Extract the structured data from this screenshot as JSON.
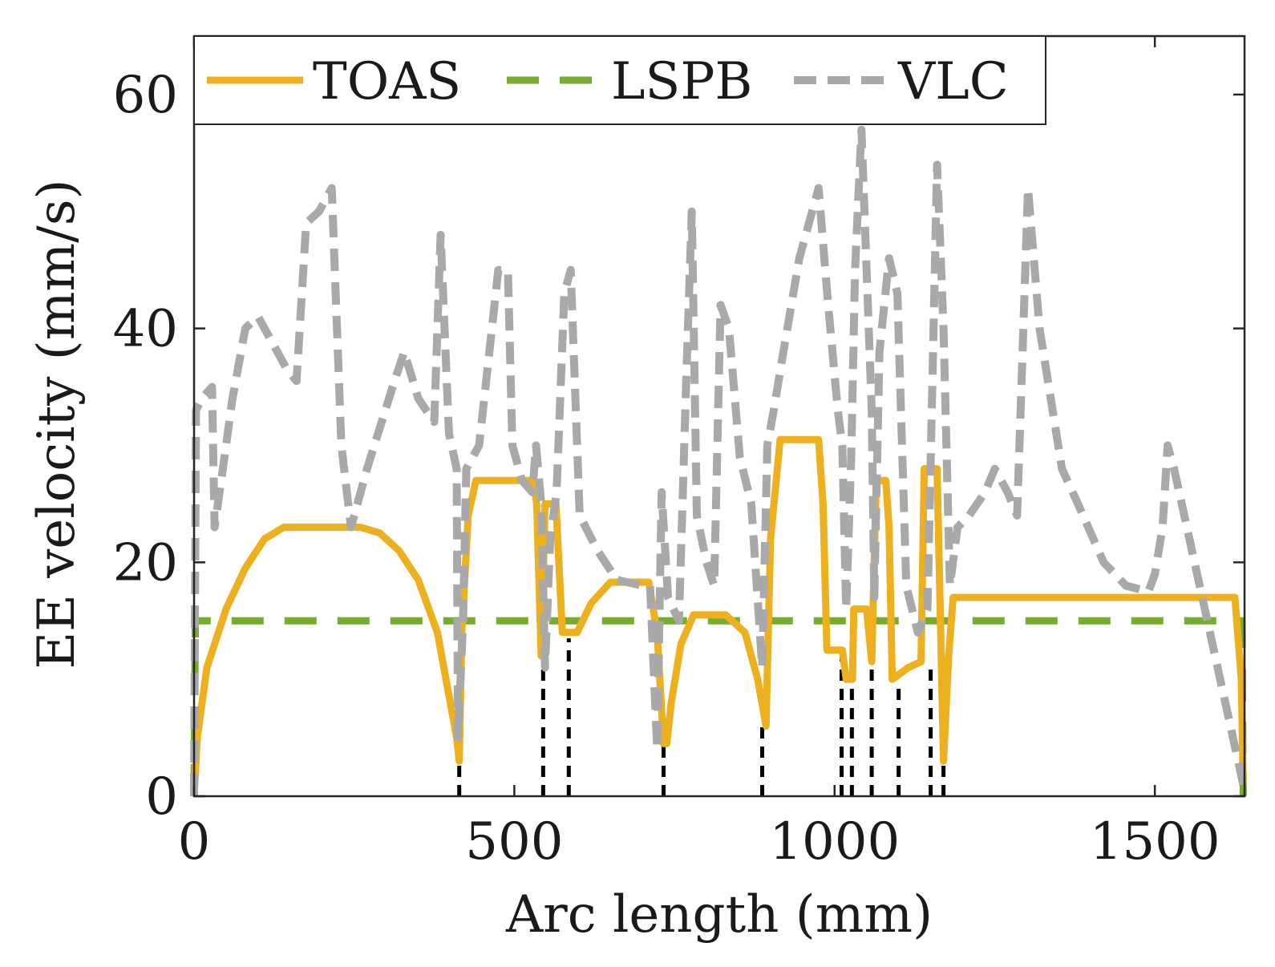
{
  "chart_data": {
    "type": "line",
    "title": "",
    "xlabel": "Arc length (mm)",
    "ylabel": "EE velocity (mm/s)",
    "xlim": [
      0,
      1640
    ],
    "ylim": [
      0,
      65
    ],
    "xticks": [
      0,
      500,
      1000,
      1500
    ],
    "yticks": [
      0,
      20,
      40,
      60
    ],
    "grid": false,
    "legend": {
      "placement": "top",
      "orientation": "horizontal"
    },
    "series": [
      {
        "name": "TOAS",
        "color": "#EDB120",
        "style": "solid",
        "points": [
          [
            0,
            0
          ],
          [
            5,
            5
          ],
          [
            20,
            11
          ],
          [
            50,
            16
          ],
          [
            80,
            19.5
          ],
          [
            110,
            22
          ],
          [
            140,
            23
          ],
          [
            260,
            23
          ],
          [
            290,
            22.5
          ],
          [
            320,
            21
          ],
          [
            350,
            18.5
          ],
          [
            380,
            14
          ],
          [
            410,
            5
          ],
          [
            414,
            3
          ],
          [
            418,
            14
          ],
          [
            428,
            24
          ],
          [
            440,
            27
          ],
          [
            530,
            27
          ],
          [
            535,
            25
          ],
          [
            542,
            12
          ],
          [
            548,
            25
          ],
          [
            565,
            25
          ],
          [
            575,
            14
          ],
          [
            588,
            14
          ],
          [
            598,
            14
          ],
          [
            620,
            16.5
          ],
          [
            650,
            18.3
          ],
          [
            710,
            18.3
          ],
          [
            723,
            14
          ],
          [
            733,
            4.5
          ],
          [
            738,
            4.5
          ],
          [
            745,
            8
          ],
          [
            760,
            13
          ],
          [
            780,
            15.5
          ],
          [
            830,
            15.5
          ],
          [
            860,
            14
          ],
          [
            880,
            10
          ],
          [
            893,
            6
          ],
          [
            900,
            22
          ],
          [
            915,
            30.5
          ],
          [
            975,
            30.5
          ],
          [
            982,
            25
          ],
          [
            988,
            12.5
          ],
          [
            1012,
            12.5
          ],
          [
            1018,
            10
          ],
          [
            1028,
            10
          ],
          [
            1030,
            16
          ],
          [
            1050,
            16
          ],
          [
            1058,
            11.5
          ],
          [
            1065,
            27
          ],
          [
            1080,
            27
          ],
          [
            1085,
            23
          ],
          [
            1090,
            10
          ],
          [
            1115,
            11
          ],
          [
            1135,
            11.5
          ],
          [
            1140,
            28
          ],
          [
            1160,
            28
          ],
          [
            1170,
            3
          ],
          [
            1178,
            12
          ],
          [
            1185,
            17
          ],
          [
            1625,
            17
          ],
          [
            1635,
            10
          ],
          [
            1638,
            1
          ]
        ]
      },
      {
        "name": "LSPB",
        "color": "#77AC30",
        "style": "dashed",
        "points": [
          [
            0,
            0
          ],
          [
            2,
            15
          ],
          [
            1636,
            15
          ],
          [
            1638,
            0
          ]
        ]
      },
      {
        "name": "VLC",
        "color": "#A9A9A9",
        "style": "dashed",
        "points": [
          [
            0,
            0
          ],
          [
            3,
            33
          ],
          [
            12,
            34
          ],
          [
            28,
            35
          ],
          [
            32,
            23
          ],
          [
            45,
            28
          ],
          [
            60,
            34
          ],
          [
            80,
            40
          ],
          [
            100,
            41
          ],
          [
            120,
            39
          ],
          [
            145,
            36.5
          ],
          [
            160,
            35.5
          ],
          [
            175,
            49
          ],
          [
            195,
            50
          ],
          [
            215,
            52
          ],
          [
            230,
            30
          ],
          [
            245,
            23
          ],
          [
            270,
            28
          ],
          [
            310,
            35
          ],
          [
            328,
            38
          ],
          [
            350,
            34
          ],
          [
            375,
            32
          ],
          [
            385,
            48
          ],
          [
            398,
            31
          ],
          [
            410,
            28
          ],
          [
            412,
            5
          ],
          [
            420,
            15
          ],
          [
            425,
            28
          ],
          [
            445,
            30
          ],
          [
            475,
            45
          ],
          [
            490,
            45
          ],
          [
            497,
            30
          ],
          [
            512,
            27
          ],
          [
            528,
            26
          ],
          [
            534,
            30
          ],
          [
            542,
            25
          ],
          [
            548,
            11
          ],
          [
            556,
            22
          ],
          [
            566,
            26
          ],
          [
            578,
            43
          ],
          [
            588,
            45
          ],
          [
            602,
            24
          ],
          [
            630,
            21
          ],
          [
            660,
            18.5
          ],
          [
            700,
            18
          ],
          [
            712,
            18
          ],
          [
            723,
            4
          ],
          [
            730,
            26
          ],
          [
            740,
            17
          ],
          [
            757,
            15
          ],
          [
            768,
            35
          ],
          [
            777,
            50
          ],
          [
            785,
            24
          ],
          [
            800,
            20
          ],
          [
            812,
            18
          ],
          [
            822,
            42
          ],
          [
            835,
            40
          ],
          [
            852,
            29
          ],
          [
            870,
            25
          ],
          [
            887,
            11
          ],
          [
            895,
            30
          ],
          [
            905,
            33
          ],
          [
            920,
            38
          ],
          [
            945,
            46
          ],
          [
            975,
            52
          ],
          [
            990,
            42
          ],
          [
            1005,
            33
          ],
          [
            1012,
            30
          ],
          [
            1018,
            16
          ],
          [
            1026,
            29
          ],
          [
            1032,
            45
          ],
          [
            1042,
            57
          ],
          [
            1050,
            45
          ],
          [
            1058,
            33
          ],
          [
            1062,
            17
          ],
          [
            1070,
            38
          ],
          [
            1085,
            46
          ],
          [
            1098,
            43
          ],
          [
            1112,
            18
          ],
          [
            1130,
            14
          ],
          [
            1145,
            16
          ],
          [
            1160,
            54
          ],
          [
            1170,
            40
          ],
          [
            1180,
            18
          ],
          [
            1192,
            23
          ],
          [
            1210,
            24
          ],
          [
            1235,
            26
          ],
          [
            1250,
            28
          ],
          [
            1270,
            26
          ],
          [
            1285,
            24
          ],
          [
            1302,
            52
          ],
          [
            1320,
            40
          ],
          [
            1355,
            28
          ],
          [
            1380,
            25
          ],
          [
            1420,
            20
          ],
          [
            1455,
            18
          ],
          [
            1490,
            17.5
          ],
          [
            1500,
            19
          ],
          [
            1512,
            23
          ],
          [
            1520,
            30
          ],
          [
            1530,
            28
          ],
          [
            1638,
            1
          ]
        ]
      }
    ],
    "event_markers": {
      "color": "#000000",
      "style": "dotted",
      "points": [
        [
          414,
          3
        ],
        [
          545,
          11.5
        ],
        [
          585,
          13.5
        ],
        [
          733,
          4.5
        ],
        [
          887,
          6
        ],
        [
          1011,
          12.5
        ],
        [
          1027,
          10
        ],
        [
          1058,
          11.5
        ],
        [
          1100,
          9.5
        ],
        [
          1150,
          11.5
        ],
        [
          1170,
          3
        ]
      ]
    }
  }
}
